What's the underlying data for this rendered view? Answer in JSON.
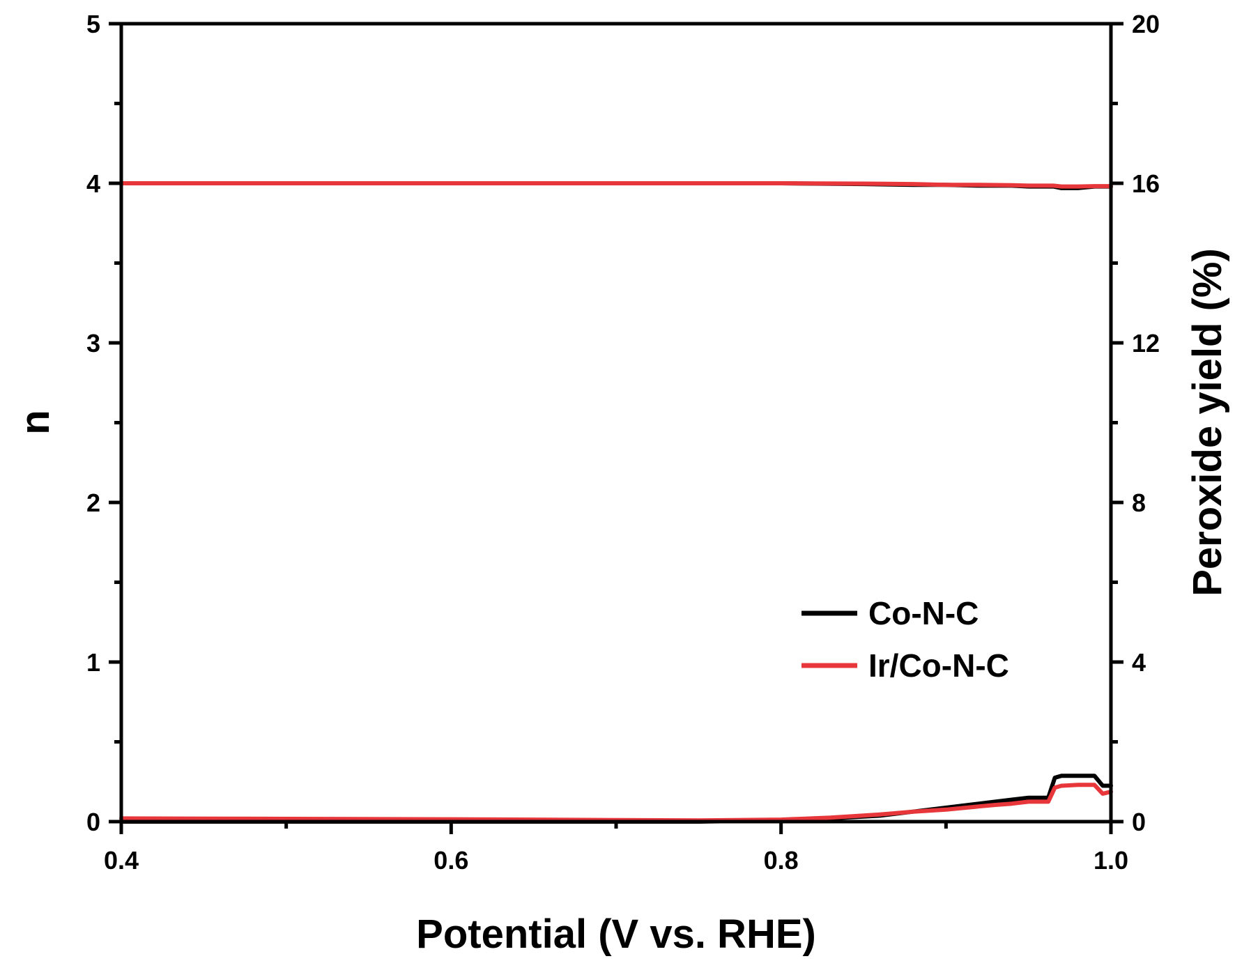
{
  "chart_data": {
    "type": "line",
    "xlabel": "Potential (V vs. RHE)",
    "ylabel": "n",
    "y2label": "Peroxide yield (%)",
    "xlim": [
      0.4,
      1.0
    ],
    "ylim": [
      0,
      5
    ],
    "y2lim": [
      0,
      20
    ],
    "x_ticks": [
      "0.4",
      "0.6",
      "0.8",
      "1.0"
    ],
    "y_ticks": [
      "0",
      "1",
      "2",
      "3",
      "4",
      "5"
    ],
    "y2_ticks": [
      "0",
      "4",
      "8",
      "12",
      "16",
      "20"
    ],
    "grid": false,
    "legend_position": "lower-right",
    "series": [
      {
        "name": "Co-N-C",
        "color": "#000000",
        "axis": "left",
        "x": [
          0.4,
          0.5,
          0.6,
          0.7,
          0.8,
          0.85,
          0.88,
          0.9,
          0.92,
          0.94,
          0.95,
          0.96,
          0.965,
          0.97,
          0.98,
          0.99,
          0.995,
          1.0
        ],
        "y": [
          4.0,
          4.0,
          4.0,
          4.0,
          4.0,
          3.995,
          3.99,
          3.99,
          3.985,
          3.985,
          3.98,
          3.98,
          3.98,
          3.97,
          3.97,
          3.98,
          3.98,
          3.98
        ]
      },
      {
        "name": "Ir/Co-N-C",
        "color": "#e8373a",
        "axis": "left",
        "x": [
          0.4,
          0.5,
          0.6,
          0.7,
          0.8,
          0.85,
          0.88,
          0.9,
          0.92,
          0.94,
          0.95,
          0.96,
          0.965,
          0.97,
          0.98,
          0.99,
          0.995,
          1.0
        ],
        "y": [
          4.0,
          4.0,
          4.0,
          4.0,
          4.0,
          3.998,
          3.995,
          3.99,
          3.99,
          3.988,
          3.985,
          3.985,
          3.985,
          3.98,
          3.98,
          3.982,
          3.982,
          3.982
        ]
      },
      {
        "name": "Co-N-C",
        "color": "#000000",
        "axis": "right",
        "x": [
          0.4,
          0.5,
          0.6,
          0.7,
          0.75,
          0.8,
          0.83,
          0.86,
          0.88,
          0.9,
          0.92,
          0.93,
          0.94,
          0.95,
          0.96,
          0.962,
          0.966,
          0.97,
          0.98,
          0.99,
          0.995,
          1.0
        ],
        "y": [
          0.0,
          0.0,
          0.0,
          0.0,
          0.0,
          0.03,
          0.08,
          0.15,
          0.25,
          0.35,
          0.45,
          0.5,
          0.55,
          0.6,
          0.6,
          0.6,
          1.1,
          1.15,
          1.15,
          1.15,
          0.9,
          0.9
        ]
      },
      {
        "name": "Ir/Co-N-C",
        "color": "#e8373a",
        "axis": "right",
        "x": [
          0.4,
          0.5,
          0.6,
          0.7,
          0.75,
          0.8,
          0.83,
          0.86,
          0.88,
          0.9,
          0.92,
          0.93,
          0.94,
          0.95,
          0.96,
          0.962,
          0.966,
          0.97,
          0.98,
          0.99,
          0.995,
          1.0
        ],
        "y": [
          0.08,
          0.07,
          0.06,
          0.04,
          0.03,
          0.05,
          0.1,
          0.18,
          0.25,
          0.3,
          0.38,
          0.42,
          0.45,
          0.5,
          0.5,
          0.5,
          0.85,
          0.9,
          0.92,
          0.92,
          0.7,
          0.75
        ]
      }
    ]
  }
}
